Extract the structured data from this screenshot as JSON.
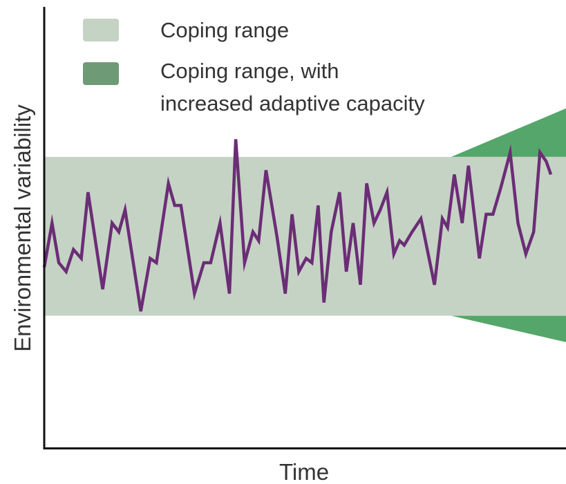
{
  "colors": {
    "coping_band": "#c5d3c4",
    "adaptive_wedge": "#55a66a",
    "legend_adaptive_swatch": "#6e9a76",
    "legend_coping_swatch": "#c5d3c4",
    "series_line": "#6b2d76",
    "axis": "#111111",
    "text": "#333333"
  },
  "legend": {
    "items": [
      {
        "label_lines": [
          "Coping range"
        ],
        "swatch": "coping"
      },
      {
        "label_lines": [
          "Coping range, with",
          "increased adaptive capacity"
        ],
        "swatch": "adaptive"
      }
    ]
  },
  "axes": {
    "ylabel": "Environmental variability",
    "xlabel": "Time"
  },
  "chart_data": {
    "type": "line",
    "ylim": [
      0,
      100
    ],
    "x_range": [
      0,
      100
    ],
    "coping_range": [
      30,
      66
    ],
    "adaptive_range_end": [
      24,
      77
    ],
    "adaptive_start_x": 78,
    "series": [
      {
        "values": [
          [
            0,
            41
          ],
          [
            1.5,
            51
          ],
          [
            2.8,
            42
          ],
          [
            4.2,
            40
          ],
          [
            5.6,
            45
          ],
          [
            7.1,
            43
          ],
          [
            8.4,
            58
          ],
          [
            11.2,
            36
          ],
          [
            13,
            51
          ],
          [
            14.3,
            49
          ],
          [
            15.5,
            54
          ],
          [
            18.5,
            31
          ],
          [
            20.3,
            43
          ],
          [
            21.5,
            42
          ],
          [
            23.8,
            60
          ],
          [
            25,
            55
          ],
          [
            26.2,
            55
          ],
          [
            28.8,
            35
          ],
          [
            30.6,
            42
          ],
          [
            31.9,
            42
          ],
          [
            33.7,
            51
          ],
          [
            35.5,
            35
          ],
          [
            36.7,
            70
          ],
          [
            38.4,
            42
          ],
          [
            40,
            49
          ],
          [
            41.1,
            47
          ],
          [
            42.5,
            63
          ],
          [
            44.6,
            48
          ],
          [
            46.2,
            35
          ],
          [
            47.5,
            53
          ],
          [
            48.8,
            40
          ],
          [
            50.2,
            43
          ],
          [
            51.3,
            42
          ],
          [
            52.5,
            55
          ],
          [
            53.6,
            33
          ],
          [
            55,
            49
          ],
          [
            56.6,
            58
          ],
          [
            57.9,
            40
          ],
          [
            59.2,
            51
          ],
          [
            60.6,
            37
          ],
          [
            61.8,
            60
          ],
          [
            63.2,
            51
          ],
          [
            64.4,
            54
          ],
          [
            65.7,
            58
          ],
          [
            67,
            44
          ],
          [
            68.1,
            47
          ],
          [
            69,
            46
          ],
          [
            70.5,
            49
          ],
          [
            72.2,
            52
          ],
          [
            74.8,
            37
          ],
          [
            76.3,
            52
          ],
          [
            77.3,
            50
          ],
          [
            78.6,
            62
          ],
          [
            80.1,
            51
          ],
          [
            81.3,
            64
          ],
          [
            83.4,
            43
          ],
          [
            84.7,
            53
          ],
          [
            86,
            53
          ],
          [
            87.5,
            59
          ],
          [
            89.3,
            67
          ],
          [
            90.8,
            51
          ],
          [
            92.3,
            44
          ],
          [
            93.8,
            49
          ],
          [
            95,
            67
          ],
          [
            96.2,
            65
          ],
          [
            97.1,
            62
          ]
        ]
      }
    ]
  }
}
